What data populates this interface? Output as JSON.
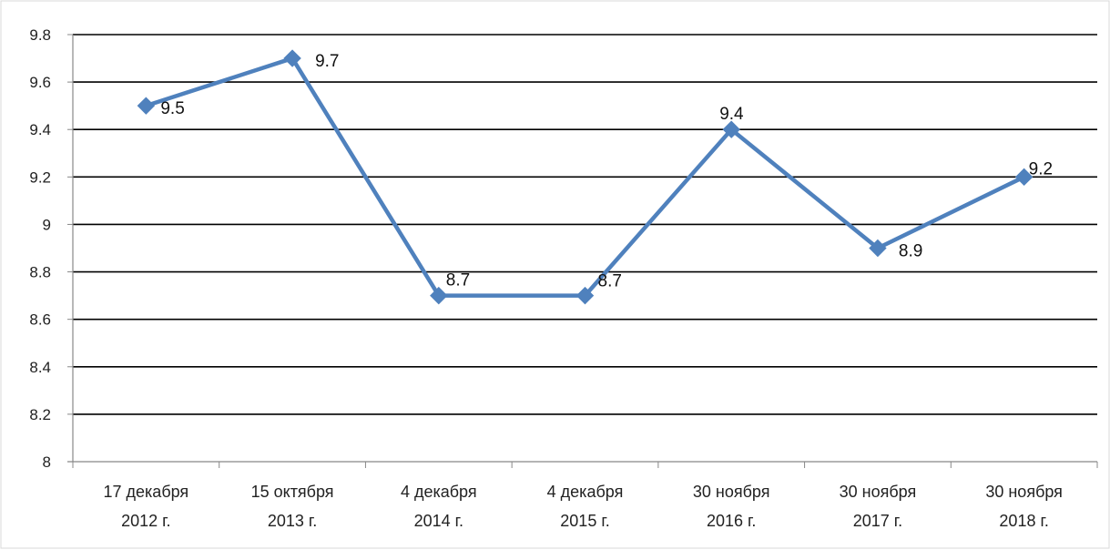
{
  "chart_data": {
    "type": "line",
    "title": "",
    "xlabel": "",
    "ylabel": "",
    "ylim": [
      8,
      9.8
    ],
    "y_ticks": [
      8,
      8.2,
      8.4,
      8.6,
      8.8,
      9,
      9.2,
      9.4,
      9.6,
      9.8
    ],
    "y_tick_labels": [
      "8",
      "8.2",
      "8.4",
      "8.6",
      "8.8",
      "9",
      "9.2",
      "9.4",
      "9.6",
      "9.8"
    ],
    "grid": true,
    "legend": "none",
    "categories": [
      [
        "17 декабря",
        "2012 г."
      ],
      [
        "15 октября",
        "2013 г."
      ],
      [
        "4 декабря",
        "2014 г."
      ],
      [
        "4 декабря",
        "2015 г."
      ],
      [
        "30 ноября",
        "2016 г."
      ],
      [
        "30 ноября",
        "2017 г."
      ],
      [
        "30 ноября",
        "2018 г."
      ]
    ],
    "series": [
      {
        "values": [
          9.5,
          9.7,
          8.7,
          8.7,
          9.4,
          8.9,
          9.2
        ],
        "data_labels": [
          "9.5",
          "9.7",
          "8.7",
          "8.7",
          "9.4",
          "8.9",
          "9.2"
        ],
        "color": "#4f81bd",
        "marker": "diamond"
      }
    ]
  }
}
